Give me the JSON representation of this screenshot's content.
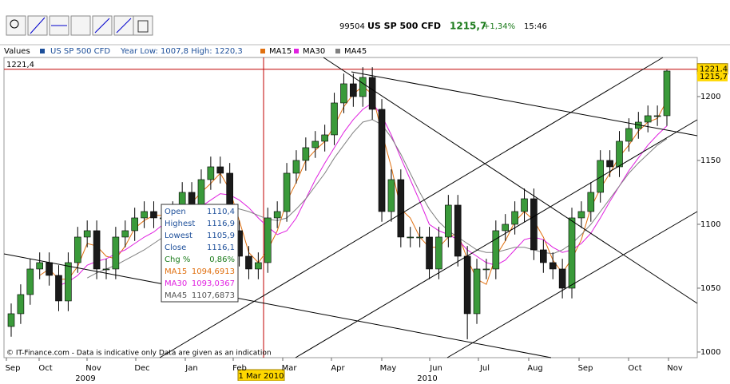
{
  "header": {
    "code": "99504",
    "name": "US SP 500 CFD",
    "price": "1215,7",
    "change": "+1,34%",
    "time": "15:46"
  },
  "legend": {
    "label": "Values",
    "series": "US SP 500 CFD",
    "range": "Year Low: 1007,8 High: 1220,3",
    "ma15": "MA15",
    "ma30": "MA30",
    "ma45": "MA45"
  },
  "info_box": {
    "rows": [
      [
        "Open",
        "1110,4"
      ],
      [
        "Highest",
        "1116,9"
      ],
      [
        "Lowest",
        "1105,9"
      ],
      [
        "Close",
        "1116,1"
      ],
      [
        "Chg %",
        "0,86%"
      ],
      [
        "MA15",
        "1094,6913"
      ],
      [
        "MA30",
        "1093,0367"
      ],
      [
        "MA45",
        "1107,6873"
      ]
    ]
  },
  "footer": "© IT-Finance.com - Data is indicative only Data are given as an indication",
  "chart_data": {
    "type": "candlestick",
    "ylim": [
      995.6,
      1230.6
    ],
    "yticks": [
      1000,
      1050,
      1100,
      1150,
      1200
    ],
    "months": [
      "Sep",
      "Oct",
      "Nov",
      "Dec",
      "Jan",
      "Feb",
      "Mar",
      "Apr",
      "May",
      "Jun",
      "Jul",
      "Aug",
      "Sep",
      "Oct",
      "Nov"
    ],
    "years": [
      "2009",
      "2010"
    ],
    "cursor_date": "1 Mar 2010",
    "cursor_price": {
      "value": 1221.4,
      "label": "1221,4"
    },
    "last_price": {
      "value": 1215.7,
      "label": "1215,7"
    },
    "up_color": "#3a9a3a",
    "down_color": "#1a1a1a",
    "open": [
      1020,
      1030,
      1045,
      1065,
      1070,
      1060,
      1040,
      1070,
      1090,
      1095,
      1065,
      1065,
      1090,
      1095,
      1105,
      1110,
      1105,
      1105,
      1110,
      1125,
      1115,
      1135,
      1145,
      1140,
      1095,
      1075,
      1065,
      1070,
      1105,
      1110,
      1140,
      1150,
      1160,
      1165,
      1170,
      1195,
      1210,
      1200,
      1215,
      1190,
      1110,
      1135,
      1090,
      1090,
      1090,
      1065,
      1090,
      1115,
      1075,
      1030,
      1065,
      1065,
      1095,
      1100,
      1110,
      1120,
      1080,
      1070,
      1065,
      1050,
      1105,
      1110,
      1125,
      1150,
      1145,
      1165,
      1175,
      1180,
      1185,
      1185
    ],
    "high": [
      1038,
      1053,
      1073,
      1078,
      1078,
      1068,
      1078,
      1098,
      1103,
      1103,
      1073,
      1098,
      1103,
      1113,
      1118,
      1118,
      1113,
      1118,
      1133,
      1133,
      1143,
      1153,
      1153,
      1148,
      1103,
      1083,
      1078,
      1113,
      1118,
      1148,
      1158,
      1168,
      1173,
      1178,
      1203,
      1218,
      1218,
      1223,
      1223,
      1198,
      1143,
      1143,
      1098,
      1098,
      1098,
      1098,
      1123,
      1123,
      1083,
      1073,
      1073,
      1103,
      1108,
      1118,
      1128,
      1128,
      1088,
      1078,
      1073,
      1113,
      1118,
      1133,
      1158,
      1158,
      1173,
      1183,
      1188,
      1193,
      1193,
      1221
    ],
    "low": [
      1012,
      1022,
      1037,
      1057,
      1052,
      1032,
      1032,
      1062,
      1082,
      1057,
      1057,
      1057,
      1082,
      1087,
      1097,
      1097,
      1097,
      1097,
      1102,
      1107,
      1107,
      1127,
      1132,
      1087,
      1067,
      1057,
      1057,
      1062,
      1097,
      1102,
      1132,
      1142,
      1152,
      1157,
      1162,
      1187,
      1192,
      1192,
      1182,
      1102,
      1102,
      1082,
      1082,
      1082,
      1057,
      1057,
      1082,
      1067,
      1010,
      1022,
      1057,
      1057,
      1087,
      1092,
      1102,
      1072,
      1062,
      1057,
      1042,
      1042,
      1097,
      1102,
      1117,
      1137,
      1137,
      1157,
      1167,
      1172,
      1177,
      1177
    ],
    "close": [
      1030,
      1045,
      1065,
      1070,
      1060,
      1040,
      1070,
      1090,
      1095,
      1065,
      1065,
      1090,
      1095,
      1105,
      1110,
      1105,
      1105,
      1110,
      1125,
      1115,
      1135,
      1145,
      1140,
      1095,
      1075,
      1065,
      1070,
      1105,
      1110,
      1140,
      1150,
      1160,
      1165,
      1170,
      1195,
      1210,
      1200,
      1215,
      1190,
      1110,
      1135,
      1090,
      1090,
      1090,
      1065,
      1090,
      1115,
      1075,
      1030,
      1065,
      1065,
      1095,
      1100,
      1110,
      1120,
      1080,
      1070,
      1065,
      1050,
      1105,
      1110,
      1125,
      1150,
      1145,
      1165,
      1175,
      1180,
      1185,
      1185,
      1220
    ],
    "series": [
      {
        "name": "MA15",
        "color": "#e07010",
        "values": [
          null,
          null,
          null,
          1060,
          1065,
          1057,
          1057,
          1067,
          1085,
          1083,
          1075,
          1073,
          1083,
          1097,
          1103,
          1107,
          1107,
          1107,
          1113,
          1117,
          1125,
          1132,
          1140,
          1127,
          1103,
          1078,
          1070,
          1080,
          1095,
          1118,
          1133,
          1150,
          1158,
          1165,
          1177,
          1192,
          1202,
          1208,
          1202,
          1172,
          1145,
          1112,
          1105,
          1090,
          1082,
          1082,
          1090,
          1093,
          1073,
          1057,
          1053,
          1075,
          1087,
          1102,
          1110,
          1103,
          1090,
          1072,
          1062,
          1073,
          1088,
          1113,
          1128,
          1140,
          1153,
          1162,
          1173,
          1180,
          1183,
          1197
        ]
      },
      {
        "name": "MA30",
        "color": "#e020e0",
        "values": [
          null,
          null,
          null,
          null,
          null,
          1052,
          1055,
          1060,
          1068,
          1071,
          1073,
          1077,
          1080,
          1085,
          1090,
          1094,
          1100,
          1104,
          1108,
          1110,
          1114,
          1119,
          1124,
          1123,
          1119,
          1113,
          1105,
          1098,
          1092,
          1095,
          1105,
          1120,
          1135,
          1148,
          1160,
          1172,
          1182,
          1190,
          1195,
          1185,
          1170,
          1152,
          1135,
          1118,
          1100,
          1095,
          1092,
          1088,
          1080,
          1075,
          1070,
          1068,
          1072,
          1080,
          1088,
          1090,
          1088,
          1082,
          1078,
          1080,
          1085,
          1093,
          1105,
          1118,
          1130,
          1142,
          1152,
          1162,
          1170,
          1177
        ]
      },
      {
        "name": "MA45",
        "color": "#808080",
        "values": [
          null,
          null,
          null,
          null,
          null,
          null,
          null,
          null,
          1058,
          1062,
          1065,
          1068,
          1072,
          1076,
          1080,
          1085,
          1090,
          1095,
          1100,
          1104,
          1107,
          1110,
          1112,
          1113,
          1112,
          1110,
          1107,
          1104,
          1103,
          1105,
          1112,
          1120,
          1130,
          1140,
          1152,
          1162,
          1172,
          1180,
          1182,
          1178,
          1168,
          1155,
          1140,
          1125,
          1112,
          1102,
          1095,
          1090,
          1085,
          1080,
          1078,
          1078,
          1080,
          1082,
          1082,
          1080,
          1078,
          1077,
          1080,
          1085,
          1092,
          1100,
          1110,
          1120,
          1130,
          1140,
          1148,
          1155,
          1162,
          1167
        ]
      }
    ]
  }
}
